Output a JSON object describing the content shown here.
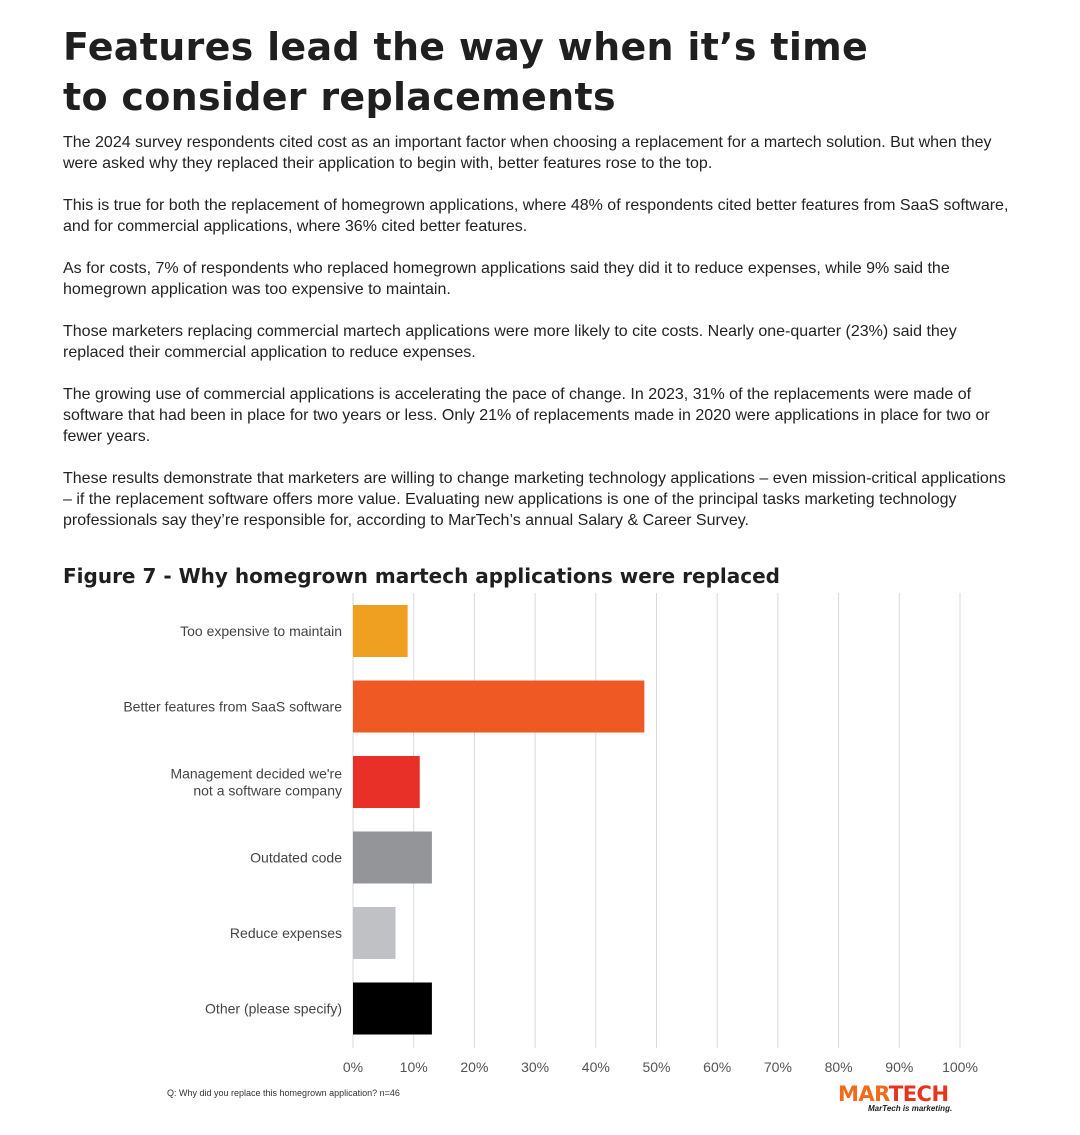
{
  "title": {
    "line1": "Features lead the way when it’s time",
    "line2": "to consider replacements"
  },
  "paragraphs": [
    "The 2024 survey respondents cited cost as an important factor when choosing a replacement for a martech solution. But when they were asked why they replaced their application to begin with, better features rose to the top.",
    "This is true for both the replacement of homegrown applications, where 48% of respondents cited better features from SaaS software, and for commercial applications, where 36% cited better features.",
    "As for costs, 7% of respondents who replaced homegrown applications said they did it to reduce expenses, while 9% said the homegrown application was too expensive to maintain.",
    "Those marketers replacing commercial martech applications were more likely to cite costs. Nearly one-quarter (23%) said they replaced their commercial application to reduce expenses.",
    "The growing use of commercial applications is accelerating the pace of change. In 2023, 31% of the replacements were made of software that had been in place for two years or less. Only 21% of replacements made in 2020 were applications in place for two or fewer years.",
    "These results demonstrate that marketers are willing to change marketing technology applications – even mission-critical applications – if the replacement software offers more value. Evaluating new applications is one of the principal tasks marketing technology professionals say they’re responsible for, according to MarTech’s annual Salary & Career Survey."
  ],
  "figure": {
    "title": "Figure 7 - Why homegrown martech applications were replaced",
    "footnote": "Q: Why did you replace this homegrown application? n=46"
  },
  "chart_data": {
    "type": "bar",
    "orientation": "horizontal",
    "title": "Figure 7 - Why homegrown martech applications were replaced",
    "categories": [
      [
        "Too expensive to maintain"
      ],
      [
        "Better features from SaaS software"
      ],
      [
        "Management decided we're",
        "not a software company"
      ],
      [
        "Outdated code"
      ],
      [
        "Reduce expenses"
      ],
      [
        "Other (please specify)"
      ]
    ],
    "values": [
      9,
      48,
      11,
      13,
      7,
      13
    ],
    "colors": [
      "#f0a020",
      "#ef5a24",
      "#e93028",
      "#939598",
      "#c0c1c4",
      "#000000"
    ],
    "xlim": [
      0,
      100
    ],
    "ticks": [
      0,
      10,
      20,
      30,
      40,
      50,
      60,
      70,
      80,
      90,
      100
    ],
    "tick_labels": [
      "0%",
      "10%",
      "20%",
      "30%",
      "40%",
      "50%",
      "60%",
      "70%",
      "80%",
      "90%",
      "100%"
    ],
    "grid": true,
    "xlabel": "",
    "ylabel": ""
  },
  "logo": {
    "word_main": "MAR",
    "word_accent": "TECH",
    "tagline": "MarTech is marketing."
  }
}
